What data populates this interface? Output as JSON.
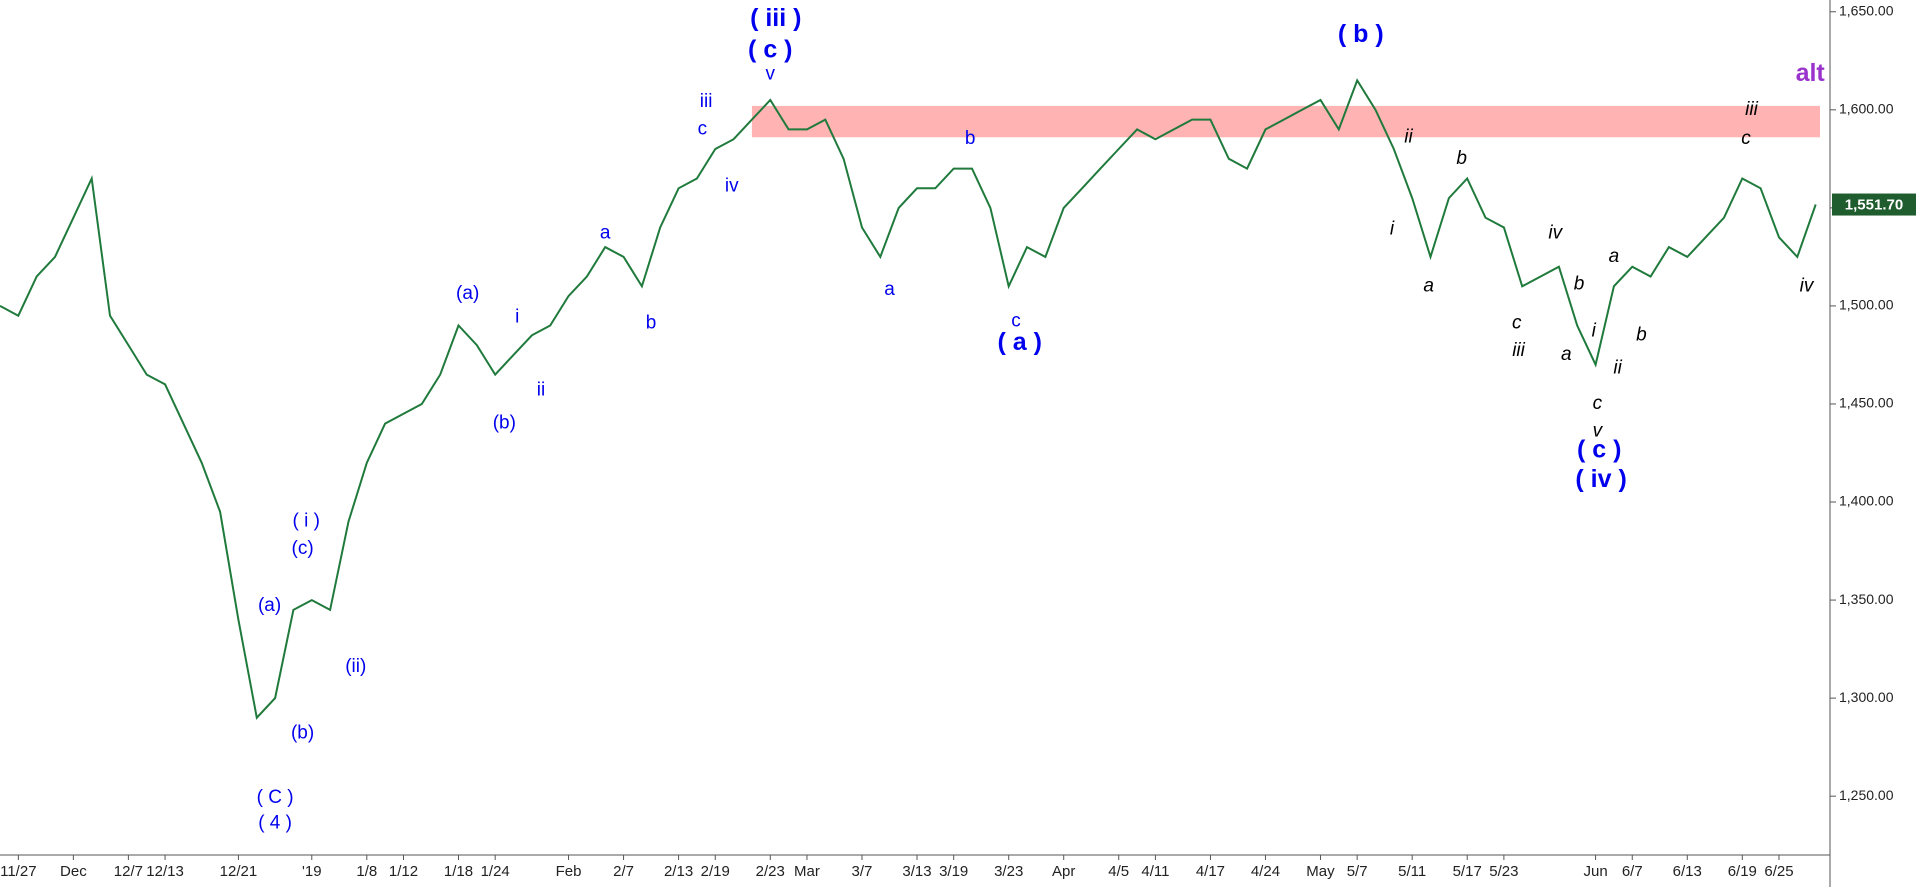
{
  "chart_data": {
    "type": "line",
    "color": "#1f7a3c",
    "categories": [
      null,
      "11/27",
      null,
      null,
      "Dec",
      null,
      null,
      "12/7",
      null,
      "12/13",
      null,
      null,
      null,
      "12/21",
      null,
      null,
      null,
      "'19",
      null,
      null,
      "1/8",
      null,
      "1/12",
      null,
      null,
      "1/18",
      null,
      "1/24",
      null,
      null,
      null,
      "Feb",
      null,
      null,
      "2/7",
      null,
      null,
      "2/13",
      null,
      "2/19",
      null,
      null,
      "2/23",
      null,
      "Mar",
      null,
      null,
      "3/7",
      null,
      null,
      "3/13",
      null,
      "3/19",
      null,
      null,
      "3/23",
      null,
      null,
      "Apr",
      null,
      null,
      "4/5",
      null,
      "4/11",
      null,
      null,
      "4/17",
      null,
      null,
      "4/24",
      null,
      null,
      "May",
      null,
      "5/7",
      null,
      null,
      "5/11",
      null,
      null,
      "5/17",
      null,
      "5/23",
      null,
      null,
      null,
      null,
      "Jun",
      null,
      "6/7",
      null,
      null,
      "6/13",
      null,
      null,
      "6/19",
      null,
      "6/25",
      null,
      null
    ],
    "values": [
      1500,
      1495,
      1515,
      1525,
      1545,
      1565,
      1495,
      1480,
      1465,
      1460,
      1440,
      1420,
      1395,
      1340,
      1290,
      1300,
      1345,
      1350,
      1345,
      1390,
      1420,
      1440,
      1445,
      1450,
      1465,
      1490,
      1480,
      1465,
      1475,
      1485,
      1490,
      1505,
      1515,
      1530,
      1525,
      1510,
      1540,
      1560,
      1565,
      1580,
      1585,
      1595,
      1605,
      1590,
      1590,
      1595,
      1575,
      1540,
      1525,
      1550,
      1560,
      1560,
      1570,
      1570,
      1550,
      1510,
      1530,
      1525,
      1550,
      1560,
      1570,
      1580,
      1590,
      1585,
      1590,
      1595,
      1595,
      1575,
      1570,
      1590,
      1595,
      1600,
      1605,
      1590,
      1615,
      1600,
      1580,
      1555,
      1525,
      1555,
      1565,
      1545,
      1540,
      1510,
      1515,
      1520,
      1490,
      1470,
      1510,
      1520,
      1515,
      1530,
      1525,
      1535,
      1545,
      1565,
      1560,
      1535,
      1525,
      1551.7
    ],
    "ylim": [
      1220,
      1656
    ],
    "yticks": [
      {
        "value": 1250,
        "label": "1,250.00"
      },
      {
        "value": 1300,
        "label": "1,300.00"
      },
      {
        "value": 1350,
        "label": "1,350.00"
      },
      {
        "value": 1400,
        "label": "1,400.00"
      },
      {
        "value": 1450,
        "label": "1,450.00"
      },
      {
        "value": 1500,
        "label": "1,500.00"
      },
      {
        "value": 1550,
        "label": "1,550.00"
      },
      {
        "value": 1600,
        "label": "1,600.00"
      },
      {
        "value": 1650,
        "label": "1,650.00"
      }
    ],
    "last_price": {
      "value": 1551.7,
      "label": "1,551.70",
      "color": "#1f5c2e"
    },
    "band": {
      "from": 1586,
      "to": 1602,
      "start": 41,
      "color": "#ffb3b3"
    },
    "annotations": [
      {
        "text": "( iii )",
        "x": 42.3,
        "y": 1646,
        "color": "#0000ee",
        "big": true
      },
      {
        "text": "( c )",
        "x": 42,
        "y": 1630,
        "color": "#0000ee",
        "big": true
      },
      {
        "text": "v",
        "x": 42,
        "y": 1618,
        "color": "#0000ee"
      },
      {
        "text": "iii",
        "x": 38.5,
        "y": 1604,
        "color": "#0000ee"
      },
      {
        "text": "c",
        "x": 38.3,
        "y": 1590,
        "color": "#0000ee"
      },
      {
        "text": "iv",
        "x": 39.9,
        "y": 1561,
        "color": "#0000ee"
      },
      {
        "text": "a",
        "x": 33,
        "y": 1537,
        "color": "#0000ee"
      },
      {
        "text": "b",
        "x": 35.5,
        "y": 1491,
        "color": "#0000ee"
      },
      {
        "text": "(a)",
        "x": 25.5,
        "y": 1506,
        "color": "#0000ee"
      },
      {
        "text": "i",
        "x": 28.2,
        "y": 1494,
        "color": "#0000ee"
      },
      {
        "text": "ii",
        "x": 29.5,
        "y": 1457,
        "color": "#0000ee"
      },
      {
        "text": "(b)",
        "x": 27.5,
        "y": 1440,
        "color": "#0000ee"
      },
      {
        "text": "( i )",
        "x": 16.7,
        "y": 1390,
        "color": "#0000ee"
      },
      {
        "text": "(c)",
        "x": 16.5,
        "y": 1376,
        "color": "#0000ee"
      },
      {
        "text": "(a)",
        "x": 14.7,
        "y": 1347,
        "color": "#0000ee"
      },
      {
        "text": "(ii)",
        "x": 19.4,
        "y": 1316,
        "color": "#0000ee"
      },
      {
        "text": "(b)",
        "x": 16.5,
        "y": 1282,
        "color": "#0000ee"
      },
      {
        "text": "( C )",
        "x": 15,
        "y": 1249,
        "color": "#0000ee"
      },
      {
        "text": "( 4 )",
        "x": 15,
        "y": 1236,
        "color": "#0000ee"
      },
      {
        "text": "b",
        "x": 52.9,
        "y": 1585,
        "color": "#0000ee"
      },
      {
        "text": "a",
        "x": 48.5,
        "y": 1508,
        "color": "#0000ee"
      },
      {
        "text": "c",
        "x": 55.4,
        "y": 1492,
        "color": "#0000ee"
      },
      {
        "text": "( a )",
        "x": 55.6,
        "y": 1481,
        "color": "#0000ee",
        "big": true
      },
      {
        "text": "( b )",
        "x": 74.2,
        "y": 1638,
        "color": "#0000ee",
        "big": true
      },
      {
        "text": "( c )",
        "x": 87.2,
        "y": 1426,
        "color": "#0000ee",
        "big": true
      },
      {
        "text": "( iv )",
        "x": 87.3,
        "y": 1411,
        "color": "#0000ee",
        "big": true
      },
      {
        "text": "ii",
        "x": 76.8,
        "y": 1586,
        "color": "#000000",
        "italic": true
      },
      {
        "text": "i",
        "x": 75.9,
        "y": 1539,
        "color": "#000000",
        "italic": true
      },
      {
        "text": "a",
        "x": 77.9,
        "y": 1510,
        "color": "#000000",
        "italic": true
      },
      {
        "text": "b",
        "x": 79.7,
        "y": 1575,
        "color": "#000000",
        "italic": true
      },
      {
        "text": "iv",
        "x": 84.8,
        "y": 1537,
        "color": "#000000",
        "italic": true
      },
      {
        "text": "c",
        "x": 82.7,
        "y": 1491,
        "color": "#000000",
        "italic": true
      },
      {
        "text": "iii",
        "x": 82.8,
        "y": 1477,
        "color": "#000000",
        "italic": true
      },
      {
        "text": "b",
        "x": 86.1,
        "y": 1511,
        "color": "#000000",
        "italic": true
      },
      {
        "text": "a",
        "x": 85.4,
        "y": 1475,
        "color": "#000000",
        "italic": true
      },
      {
        "text": "i",
        "x": 86.9,
        "y": 1487,
        "color": "#000000",
        "italic": true
      },
      {
        "text": "ii",
        "x": 88.2,
        "y": 1468,
        "color": "#000000",
        "italic": true
      },
      {
        "text": "c",
        "x": 87.1,
        "y": 1450,
        "color": "#000000",
        "italic": true
      },
      {
        "text": "v",
        "x": 87.1,
        "y": 1436,
        "color": "#000000",
        "italic": true
      },
      {
        "text": "a",
        "x": 88,
        "y": 1525,
        "color": "#000000",
        "italic": true
      },
      {
        "text": "b",
        "x": 89.5,
        "y": 1485,
        "color": "#000000",
        "italic": true
      },
      {
        "text": "iii",
        "x": 95.5,
        "y": 1600,
        "color": "#000000",
        "italic": true
      },
      {
        "text": "c",
        "x": 95.2,
        "y": 1585,
        "color": "#000000",
        "italic": true
      },
      {
        "text": "iv",
        "x": 98.5,
        "y": 1510,
        "color": "#000000",
        "italic": true
      },
      {
        "text": "alt",
        "x": 98.7,
        "y": 1618,
        "color": "#9933cc",
        "big": true
      }
    ]
  }
}
